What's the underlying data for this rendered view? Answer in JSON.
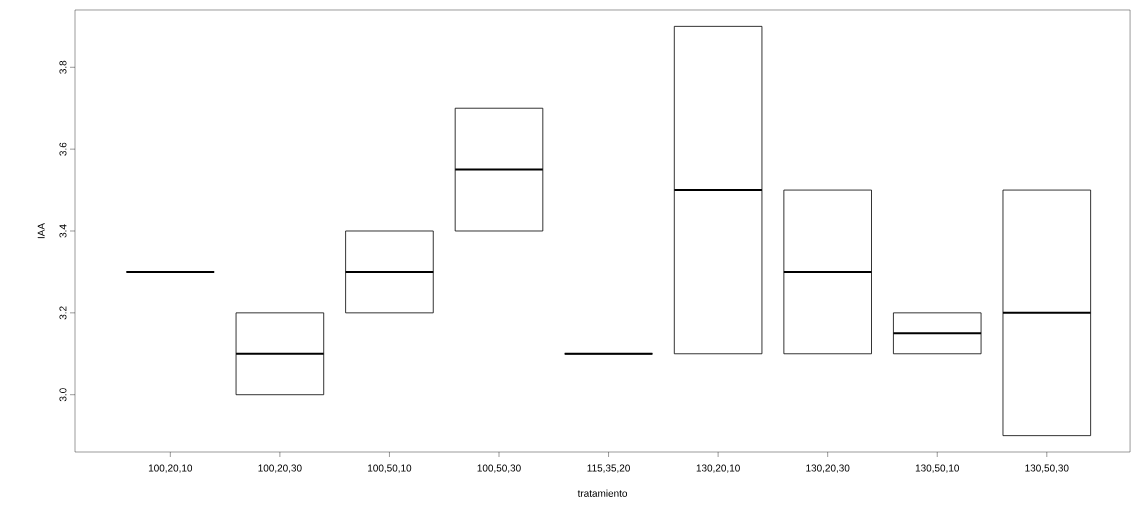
{
  "chart_data": {
    "type": "box",
    "xlabel": "tratamiento",
    "ylabel": "IAA",
    "categories": [
      "100,20,10",
      "100,20,30",
      "100,50,10",
      "100,50,30",
      "115,35,20",
      "130,20,10",
      "130,20,30",
      "130,50,10",
      "130,50,30"
    ],
    "boxes": [
      {
        "low": 3.3,
        "q1": 3.3,
        "median": 3.3,
        "q3": 3.3,
        "high": 3.3
      },
      {
        "low": 3.0,
        "q1": 3.0,
        "median": 3.1,
        "q3": 3.2,
        "high": 3.2
      },
      {
        "low": 3.2,
        "q1": 3.2,
        "median": 3.3,
        "q3": 3.4,
        "high": 3.4
      },
      {
        "low": 3.4,
        "q1": 3.4,
        "median": 3.55,
        "q3": 3.7,
        "high": 3.7
      },
      {
        "low": 3.1,
        "q1": 3.1,
        "median": 3.1,
        "q3": 3.1,
        "high": 3.1
      },
      {
        "low": 3.1,
        "q1": 3.1,
        "median": 3.5,
        "q3": 3.9,
        "high": 3.9
      },
      {
        "low": 3.1,
        "q1": 3.1,
        "median": 3.3,
        "q3": 3.5,
        "high": 3.5
      },
      {
        "low": 3.1,
        "q1": 3.1,
        "median": 3.15,
        "q3": 3.2,
        "high": 3.2
      },
      {
        "low": 2.9,
        "q1": 2.9,
        "median": 3.2,
        "q3": 3.5,
        "high": 3.5
      }
    ],
    "ylim": [
      2.86,
      3.94
    ],
    "yticks": [
      {
        "value": 3.0,
        "label": "3.0"
      },
      {
        "value": 3.2,
        "label": "3.2"
      },
      {
        "value": 3.4,
        "label": "3.4"
      },
      {
        "value": 3.6,
        "label": "3.6"
      },
      {
        "value": 3.8,
        "label": "3.8"
      }
    ]
  }
}
